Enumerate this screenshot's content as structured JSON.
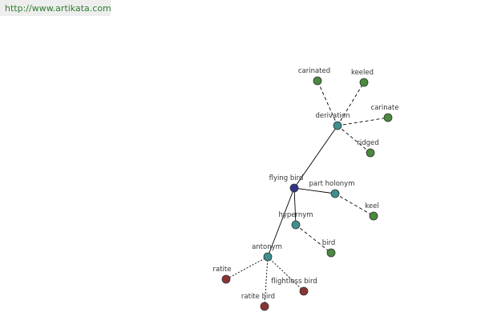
{
  "header": {
    "url": "http://www.artikata.com"
  },
  "nodes": [
    {
      "label": "flying bird"
    },
    {
      "label": "derivation"
    },
    {
      "label": "carinated"
    },
    {
      "label": "keeled"
    },
    {
      "label": "carinate"
    },
    {
      "label": "ridged"
    },
    {
      "label": "part holonym"
    },
    {
      "label": "keel"
    },
    {
      "label": "hypernym"
    },
    {
      "label": "bird"
    },
    {
      "label": "antonym"
    },
    {
      "label": "ratite"
    },
    {
      "label": "ratite bird"
    },
    {
      "label": "flightless bird"
    }
  ]
}
